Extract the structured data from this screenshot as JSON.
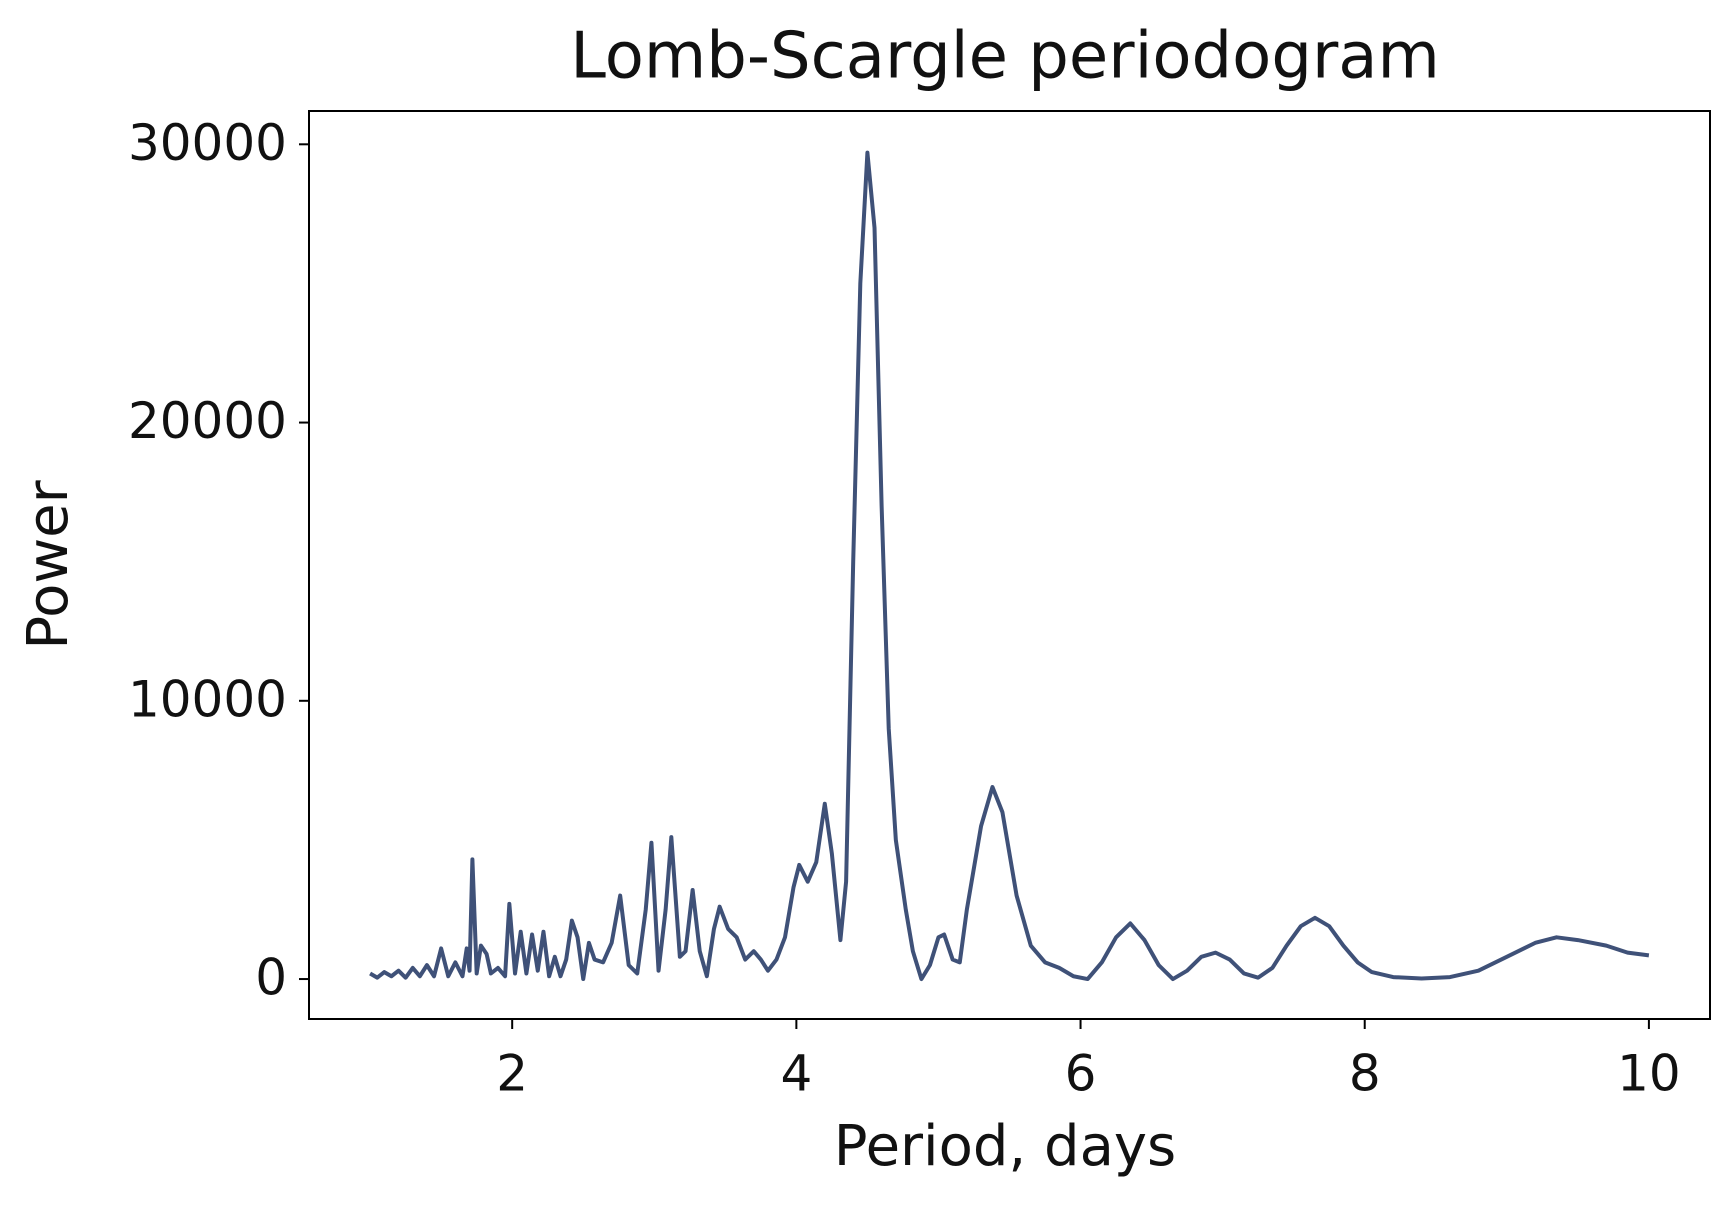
{
  "chart_data": {
    "type": "line",
    "title": "Lomb-Scargle periodogram",
    "xlabel": "Period, days",
    "ylabel": "Power",
    "x": [
      1.0,
      1.05,
      1.1,
      1.15,
      1.2,
      1.25,
      1.3,
      1.35,
      1.4,
      1.45,
      1.5,
      1.55,
      1.6,
      1.65,
      1.68,
      1.7,
      1.72,
      1.75,
      1.78,
      1.82,
      1.85,
      1.9,
      1.95,
      1.98,
      2.02,
      2.06,
      2.1,
      2.14,
      2.18,
      2.22,
      2.26,
      2.3,
      2.34,
      2.38,
      2.42,
      2.46,
      2.5,
      2.54,
      2.58,
      2.64,
      2.7,
      2.76,
      2.82,
      2.88,
      2.94,
      2.98,
      3.03,
      3.08,
      3.12,
      3.18,
      3.22,
      3.27,
      3.32,
      3.37,
      3.42,
      3.46,
      3.52,
      3.58,
      3.64,
      3.7,
      3.75,
      3.8,
      3.86,
      3.92,
      3.98,
      4.02,
      4.08,
      4.14,
      4.2,
      4.25,
      4.31,
      4.35,
      4.4,
      4.45,
      4.5,
      4.55,
      4.6,
      4.65,
      4.7,
      4.77,
      4.82,
      4.88,
      4.94,
      5.0,
      5.04,
      5.1,
      5.15,
      5.2,
      5.3,
      5.38,
      5.45,
      5.55,
      5.65,
      5.75,
      5.85,
      5.95,
      6.05,
      6.15,
      6.25,
      6.35,
      6.45,
      6.55,
      6.65,
      6.75,
      6.85,
      6.95,
      7.05,
      7.15,
      7.25,
      7.35,
      7.45,
      7.55,
      7.65,
      7.75,
      7.85,
      7.95,
      8.05,
      8.2,
      8.4,
      8.6,
      8.8,
      9.0,
      9.2,
      9.35,
      9.5,
      9.7,
      9.85,
      10.0
    ],
    "y": [
      200,
      50,
      250,
      100,
      300,
      50,
      400,
      100,
      500,
      100,
      1100,
      100,
      600,
      100,
      1100,
      300,
      4300,
      200,
      1200,
      900,
      200,
      400,
      100,
      2700,
      200,
      1700,
      200,
      1600,
      300,
      1700,
      100,
      800,
      100,
      700,
      2100,
      1500,
      0,
      1300,
      700,
      600,
      1300,
      3000,
      500,
      200,
      2500,
      4900,
      300,
      2500,
      5100,
      800,
      1000,
      3200,
      1000,
      100,
      1800,
      2600,
      1800,
      1500,
      700,
      1000,
      700,
      300,
      700,
      1500,
      3300,
      4100,
      3500,
      4200,
      6300,
      4500,
      1400,
      3500,
      15000,
      25000,
      29700,
      27000,
      17000,
      9000,
      5000,
      2500,
      1000,
      0,
      500,
      1500,
      1600,
      700,
      600,
      2500,
      5500,
      6900,
      6000,
      3000,
      1200,
      600,
      400,
      100,
      0,
      600,
      1500,
      2000,
      1400,
      500,
      0,
      300,
      800,
      950,
      700,
      200,
      50,
      400,
      1200,
      1900,
      2200,
      1900,
      1200,
      600,
      250,
      70,
      20,
      70,
      300,
      800,
      1300,
      1500,
      1400,
      1200,
      950,
      850
    ],
    "color": "#3f5178",
    "xlim": [
      0.57,
      10.43
    ],
    "ylim": [
      -1436,
      31197
    ],
    "xticks": [
      2,
      4,
      6,
      8,
      10
    ],
    "yticks": [
      0,
      10000,
      20000,
      30000
    ],
    "grid": false
  }
}
